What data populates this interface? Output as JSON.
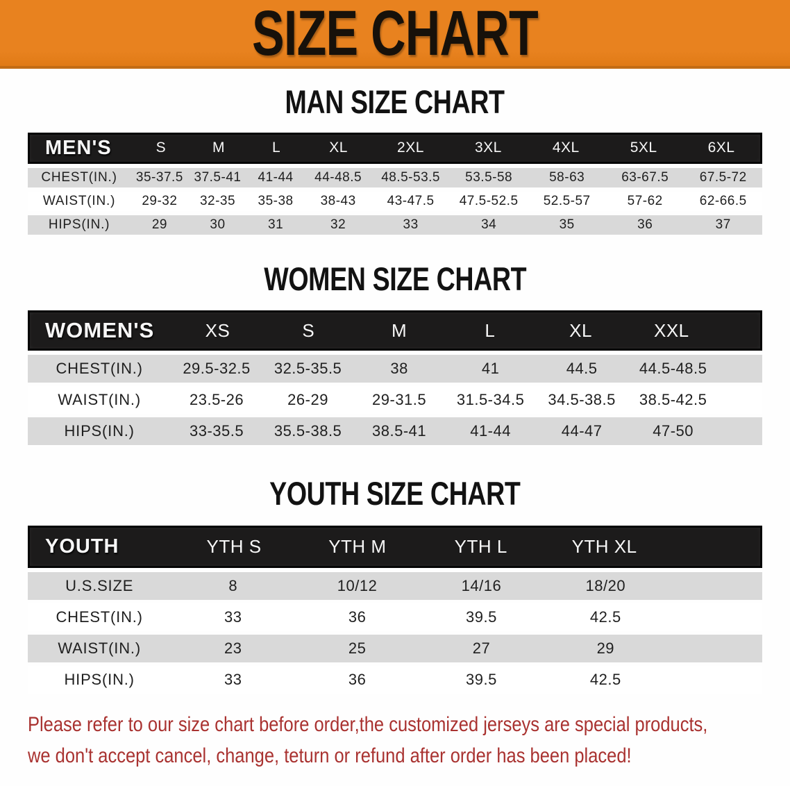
{
  "banner": {
    "title": "SIZE CHART"
  },
  "sections": [
    {
      "heading": "MAN SIZE CHART",
      "label": "MEN'S",
      "columns": [
        "S",
        "M",
        "L",
        "XL",
        "2XL",
        "3XL",
        "4XL",
        "5XL",
        "6XL"
      ],
      "rows": [
        {
          "label": "CHEST(IN.)",
          "values": [
            "35-37.5",
            "37.5-41",
            "41-44",
            "44-48.5",
            "48.5-53.5",
            "53.5-58",
            "58-63",
            "63-67.5",
            "67.5-72"
          ]
        },
        {
          "label": "WAIST(IN.)",
          "values": [
            "29-32",
            "32-35",
            "35-38",
            "38-43",
            "43-47.5",
            "47.5-52.5",
            "52.5-57",
            "57-62",
            "62-66.5"
          ]
        },
        {
          "label": "HIPS(IN.)",
          "values": [
            "29",
            "30",
            "31",
            "32",
            "33",
            "34",
            "35",
            "36",
            "37"
          ]
        }
      ]
    },
    {
      "heading": "WOMEN SIZE CHART",
      "label": "WOMEN'S",
      "columns": [
        "XS",
        "S",
        "M",
        "L",
        "XL",
        "XXL"
      ],
      "rows": [
        {
          "label": "CHEST(IN.)",
          "values": [
            "29.5-32.5",
            "32.5-35.5",
            "38",
            "41",
            "44.5",
            "44.5-48.5"
          ]
        },
        {
          "label": "WAIST(IN.)",
          "values": [
            "23.5-26",
            "26-29",
            "29-31.5",
            "31.5-34.5",
            "34.5-38.5",
            "38.5-42.5"
          ]
        },
        {
          "label": "HIPS(IN.)",
          "values": [
            "33-35.5",
            "35.5-38.5",
            "38.5-41",
            "41-44",
            "44-47",
            "47-50"
          ]
        }
      ]
    },
    {
      "heading": "YOUTH SIZE CHART",
      "label": "YOUTH",
      "columns": [
        "YTH S",
        "YTH M",
        "YTH L",
        "YTH XL"
      ],
      "rows": [
        {
          "label": "U.S.SIZE",
          "values": [
            "8",
            "10/12",
            "14/16",
            "18/20"
          ]
        },
        {
          "label": "CHEST(IN.)",
          "values": [
            "33",
            "36",
            "39.5",
            "42.5"
          ]
        },
        {
          "label": "WAIST(IN.)",
          "values": [
            "23",
            "25",
            "27",
            "29"
          ]
        },
        {
          "label": "HIPS(IN.)",
          "values": [
            "33",
            "36",
            "39.5",
            "42.5"
          ]
        }
      ]
    }
  ],
  "footer": {
    "line1": "Please refer to our size chart before order,the customized jerseys are special products,",
    "line2": "we don't accept cancel, change, teturn or refund after order has been placed!"
  },
  "colors": {
    "banner_bg": "#e8821f",
    "banner_edge": "#c26c15",
    "title_text": "#17110a",
    "table_header_bg": "#1c1b1b",
    "row_shade": "#d9d9d9",
    "notice_text": "#a93230"
  }
}
